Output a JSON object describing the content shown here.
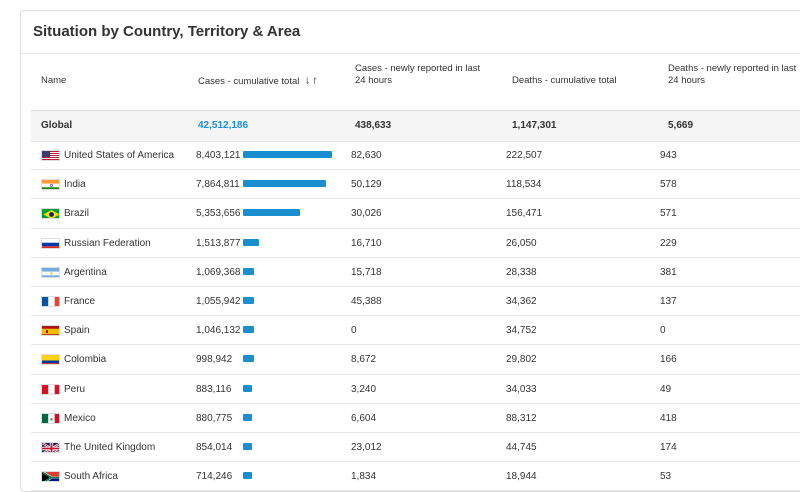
{
  "title": "Situation by Country, Territory & Area",
  "headers": {
    "name": "Name",
    "cases_total": "Cases - cumulative total",
    "cases_new_line1": "Cases - newly reported in last",
    "cases_new_line2": "24 hours",
    "deaths_total": "Deaths - cumulative total",
    "deaths_new_line1": "Deaths - newly reported in last",
    "deaths_new_line2": "24 hours",
    "sort_icon": "sort-desc-icon"
  },
  "global": {
    "name": "Global",
    "cases_total": "42,512,186",
    "cases_new": "438,633",
    "deaths_total": "1,147,301",
    "deaths_new": "5,669"
  },
  "colors": {
    "bar": "#1a8fd0",
    "link": "#1a8fd0"
  },
  "rows": [
    {
      "name": "United States of America",
      "flag": "us-flag-icon",
      "cases_total": "8,403,121",
      "cases_value": 8403121,
      "cases_new": "82,630",
      "deaths_total": "222,507",
      "deaths_new": "943"
    },
    {
      "name": "India",
      "flag": "india-flag-icon",
      "cases_total": "7,864,811",
      "cases_value": 7864811,
      "cases_new": "50,129",
      "deaths_total": "118,534",
      "deaths_new": "578"
    },
    {
      "name": "Brazil",
      "flag": "brazil-flag-icon",
      "cases_total": "5,353,656",
      "cases_value": 5353656,
      "cases_new": "30,026",
      "deaths_total": "156,471",
      "deaths_new": "571"
    },
    {
      "name": "Russian Federation",
      "flag": "russia-flag-icon",
      "cases_total": "1,513,877",
      "cases_value": 1513877,
      "cases_new": "16,710",
      "deaths_total": "26,050",
      "deaths_new": "229"
    },
    {
      "name": "Argentina",
      "flag": "argentina-flag-icon",
      "cases_total": "1,069,368",
      "cases_value": 1069368,
      "cases_new": "15,718",
      "deaths_total": "28,338",
      "deaths_new": "381"
    },
    {
      "name": "France",
      "flag": "france-flag-icon",
      "cases_total": "1,055,942",
      "cases_value": 1055942,
      "cases_new": "45,388",
      "deaths_total": "34,362",
      "deaths_new": "137"
    },
    {
      "name": "Spain",
      "flag": "spain-flag-icon",
      "cases_total": "1,046,132",
      "cases_value": 1046132,
      "cases_new": "0",
      "deaths_total": "34,752",
      "deaths_new": "0"
    },
    {
      "name": "Colombia",
      "flag": "colombia-flag-icon",
      "cases_total": "998,942",
      "cases_value": 998942,
      "cases_new": "8,672",
      "deaths_total": "29,802",
      "deaths_new": "166"
    },
    {
      "name": "Peru",
      "flag": "peru-flag-icon",
      "cases_total": "883,116",
      "cases_value": 883116,
      "cases_new": "3,240",
      "deaths_total": "34,033",
      "deaths_new": "49"
    },
    {
      "name": "Mexico",
      "flag": "mexico-flag-icon",
      "cases_total": "880,775",
      "cases_value": 880775,
      "cases_new": "6,604",
      "deaths_total": "88,312",
      "deaths_new": "418"
    },
    {
      "name": "The United Kingdom",
      "flag": "uk-flag-icon",
      "cases_total": "854,014",
      "cases_value": 854014,
      "cases_new": "23,012",
      "deaths_total": "44,745",
      "deaths_new": "174"
    },
    {
      "name": "South Africa",
      "flag": "south-africa-flag-icon",
      "cases_total": "714,246",
      "cases_value": 714246,
      "cases_new": "1,834",
      "deaths_total": "18,944",
      "deaths_new": "53"
    }
  ]
}
